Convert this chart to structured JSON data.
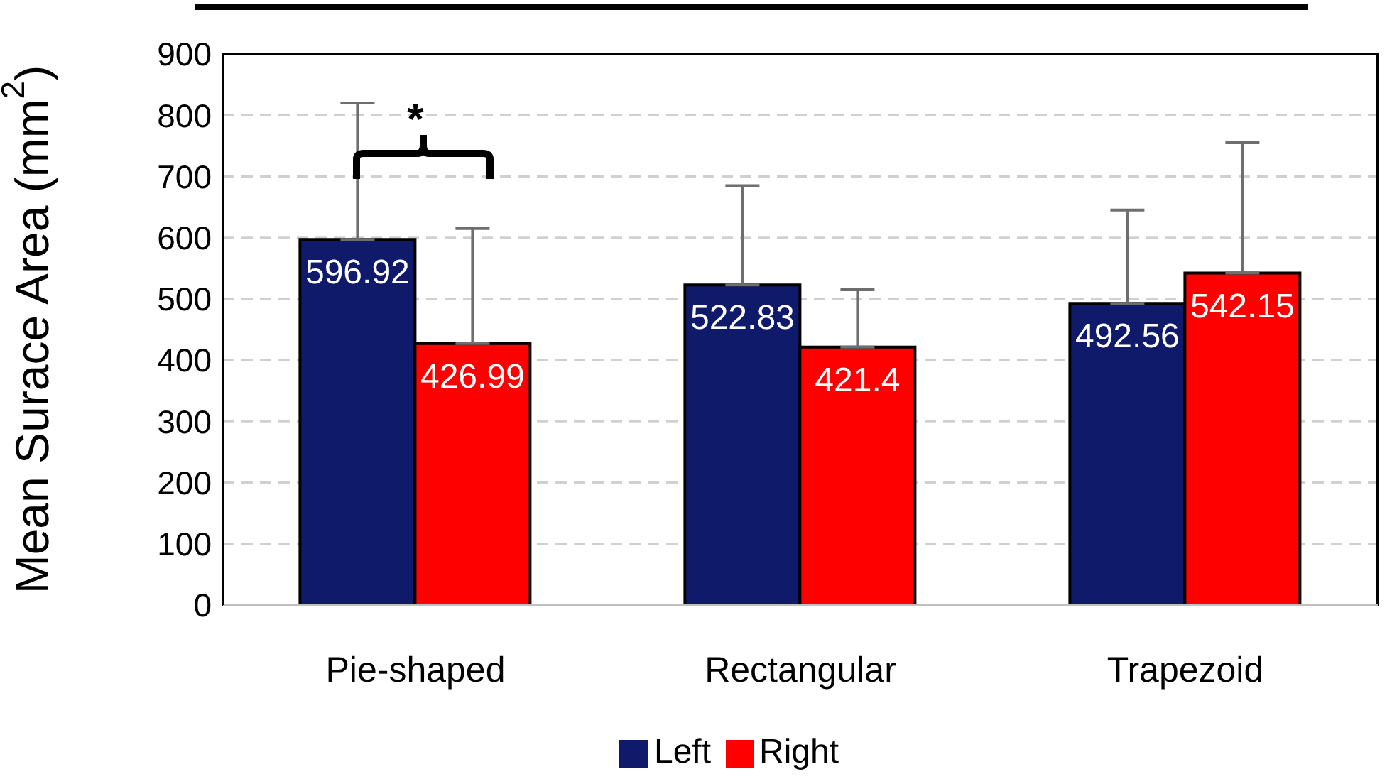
{
  "chart_data": {
    "type": "bar",
    "ylabel": "Mean Surace Area (mm$^{2}$)",
    "categories": [
      "Pie-shaped",
      "Rectangular",
      "Trapezoid"
    ],
    "series": [
      {
        "name": "Left",
        "color": "#0f1a6b",
        "values": [
          596.92,
          522.83,
          492.56
        ],
        "errors": [
          [
            596.92,
            820
          ],
          [
            522.83,
            685
          ],
          [
            492.56,
            645
          ]
        ]
      },
      {
        "name": "Right",
        "color": "#ff0000",
        "values": [
          426.99,
          421.4,
          542.15
        ],
        "errors": [
          [
            426.99,
            615
          ],
          [
            421.4,
            515
          ],
          [
            542.15,
            755
          ]
        ]
      }
    ],
    "ylim": [
      0,
      900
    ],
    "yticks": [
      0,
      100,
      200,
      300,
      400,
      500,
      600,
      700,
      800,
      900
    ],
    "grid": "y",
    "legend": "bottom",
    "data_labels": true,
    "annotations": [
      "*"
    ]
  }
}
